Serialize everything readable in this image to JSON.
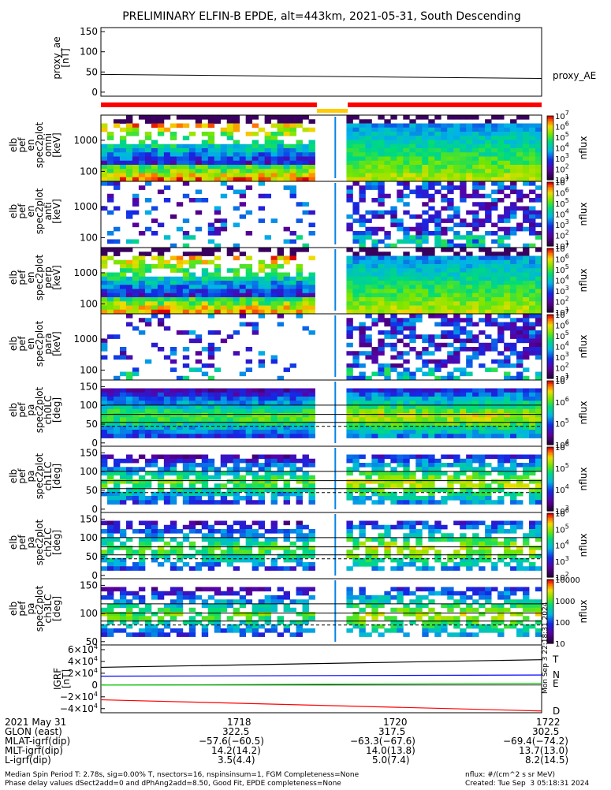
{
  "title": "PRELIMINARY ELFIN-B EPDE, alt=443km, 2021-05-31, South Descending",
  "colors": {
    "ae_line": "#000000",
    "red_bar": "#ff0000",
    "yellow_bar": "#ffcc00",
    "T": "#000000",
    "N": "#0000ff",
    "E": "#00cc00",
    "D": "#ff0000"
  },
  "chart_data": [
    {
      "type": "line",
      "panel": "ae",
      "ylabel_lines": [
        "proxy_ae",
        "[nT]"
      ],
      "yticks": [
        "150",
        "100",
        "50",
        "0"
      ],
      "ylim": [
        -10,
        160
      ],
      "series": [
        {
          "name": "proxy_AE",
          "x": [
            0,
            1
          ],
          "values": [
            44,
            34
          ]
        }
      ]
    },
    {
      "type": "bar",
      "panel": "status_bar",
      "segments": [
        {
          "color": "red",
          "from": 0.0,
          "to": 0.49
        },
        {
          "color": "yellow",
          "from": 0.49,
          "to": 0.56
        },
        {
          "color": "red",
          "from": 0.56,
          "to": 1.0
        }
      ]
    },
    {
      "type": "heatmap",
      "panel": "spec1",
      "ylabel_lines": [
        "elb",
        "pef",
        "en",
        "spec2plot",
        "omni",
        "[keV]"
      ],
      "yticks": [
        "1000",
        "100"
      ],
      "colorbar_label": "nflux",
      "cb_ticks": [
        "10^7",
        "10^6",
        "10^5",
        "10^4",
        "10^3",
        "10^2",
        "10^1"
      ]
    },
    {
      "type": "heatmap",
      "panel": "spec2",
      "ylabel_lines": [
        "elb",
        "pef",
        "en",
        "spec2plot",
        "anti",
        "[keV]"
      ],
      "yticks": [
        "1000",
        "100"
      ],
      "colorbar_label": "nflux",
      "cb_ticks": [
        "10^7",
        "10^6",
        "10^5",
        "10^4",
        "10^3",
        "10^2",
        "10^1"
      ]
    },
    {
      "type": "heatmap",
      "panel": "spec3",
      "ylabel_lines": [
        "elb",
        "pef",
        "en",
        "spec2plot",
        "perp",
        "[keV]"
      ],
      "yticks": [
        "1000",
        "100"
      ],
      "colorbar_label": "nflux",
      "cb_ticks": [
        "10^7",
        "10^6",
        "10^5",
        "10^4",
        "10^3",
        "10^2",
        "10^1"
      ]
    },
    {
      "type": "heatmap",
      "panel": "spec4",
      "ylabel_lines": [
        "elb",
        "pef",
        "en",
        "spec2plot",
        "para",
        "[keV]"
      ],
      "yticks": [
        "1000",
        "100"
      ],
      "colorbar_label": "nflux",
      "cb_ticks": [
        "10^7",
        "10^6",
        "10^5",
        "10^4",
        "10^3",
        "10^2",
        "10^1"
      ]
    },
    {
      "type": "heatmap",
      "panel": "pa0",
      "ylabel_lines": [
        "elb",
        "pef",
        "pa",
        "spec2plot",
        "ch0LC",
        "[deg]"
      ],
      "yticks": [
        "150",
        "100",
        "50",
        "0"
      ],
      "colorbar_label": "nflux",
      "cb_ticks": [
        "10^7",
        "10^6",
        "10^5",
        "10^4"
      ]
    },
    {
      "type": "heatmap",
      "panel": "pa1",
      "ylabel_lines": [
        "elb",
        "pef",
        "pa",
        "spec2plot",
        "ch1LC",
        "[deg]"
      ],
      "yticks": [
        "150",
        "100",
        "50",
        "0"
      ],
      "colorbar_label": "nflux",
      "cb_ticks": [
        "10^6",
        "10^5",
        "10^4",
        "10^3"
      ]
    },
    {
      "type": "heatmap",
      "panel": "pa2",
      "ylabel_lines": [
        "elb",
        "pef",
        "pa",
        "spec2plot",
        "ch2LC",
        "[deg]"
      ],
      "yticks": [
        "150",
        "100",
        "50",
        "0"
      ],
      "colorbar_label": "nflux",
      "cb_ticks": [
        "10^6",
        "10^5",
        "10^4",
        "10^3",
        "10^2"
      ]
    },
    {
      "type": "heatmap",
      "panel": "pa3",
      "ylabel_lines": [
        "elb",
        "pef",
        "pa",
        "spec2plot",
        "ch3LC",
        "[deg]"
      ],
      "yticks": [
        "150",
        "100",
        "50"
      ],
      "colorbar_label": "nflux",
      "cb_ticks": [
        "10000",
        "1000",
        "100",
        "10"
      ]
    },
    {
      "type": "line",
      "panel": "igrf",
      "ylabel_lines": [
        "IGRF",
        "[nT]"
      ],
      "yticks": [
        "6×10^4",
        "4×10^4",
        "2×10^4",
        "0",
        "−2×10^4",
        "−4×10^4"
      ],
      "ylim": [
        -47000,
        68000
      ],
      "series": [
        {
          "name": "T",
          "x": [
            0,
            1
          ],
          "values": [
            30000,
            43000
          ]
        },
        {
          "name": "N",
          "x": [
            0,
            1
          ],
          "values": [
            15000,
            17000
          ]
        },
        {
          "name": "E",
          "x": [
            0,
            1
          ],
          "values": [
            0,
            2500
          ]
        },
        {
          "name": "D",
          "x": [
            0,
            1
          ],
          "values": [
            -25000,
            -44000
          ]
        }
      ]
    }
  ],
  "side_label": "Mon Sep  3 22:18:31 2024",
  "bottom": {
    "col_labels": [
      "2021 May 31",
      "GLON (east)",
      "MLAT-igrf(dip)",
      "MLT-igrf(dip)",
      "L-igrf(dip)"
    ],
    "columns": [
      {
        "time": "1718",
        "glon": "322.5",
        "mlat": "−57.6(−60.5)",
        "mlt": "14.2(14.2)",
        "l": "3.5(4.4)"
      },
      {
        "time": "1720",
        "glon": "317.5",
        "mlat": "−63.3(−67.6)",
        "mlt": "14.0(13.8)",
        "l": "5.0(7.4)"
      },
      {
        "time": "1722",
        "glon": "302.5",
        "mlat": "−69.4(−74.2)",
        "mlt": "13.7(13.0)",
        "l": "8.2(14.5)"
      }
    ]
  },
  "footer": {
    "line1": "Median Spin Period T: 2.78s, sig=0.00% T, nsectors=16, nspinsinsum=1, FGM Completeness=None",
    "line2": "Phase delay values dSect2add=0 and dPhAng2add=8.50, Good Fit, EPDE completeness=None",
    "right1": "nflux: #/(cm^2 s sr MeV)",
    "right2": "Created: Tue Sep  3 05:18:31 2024"
  }
}
